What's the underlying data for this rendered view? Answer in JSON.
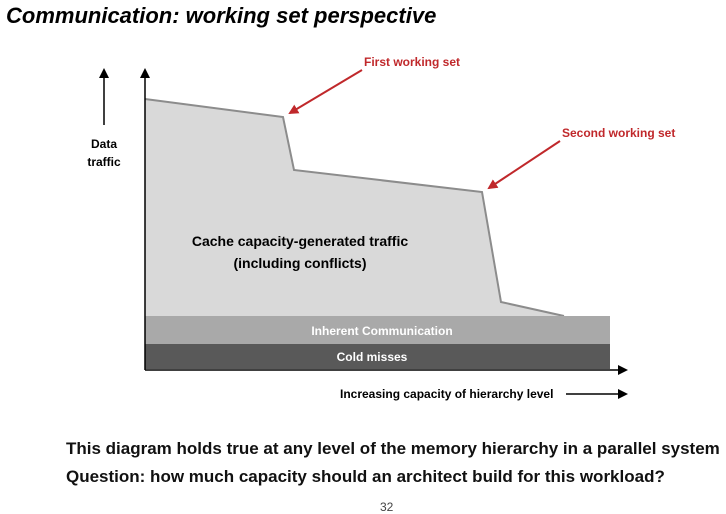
{
  "title": "Communication: working set perspective",
  "diagram": {
    "y_axis_label_line1": "Data",
    "y_axis_label_line2": "traffic",
    "x_axis_label": "Increasing capacity of hierarchy level",
    "first_working_set": "First working set",
    "second_working_set": "Second working set",
    "capacity_label_line1": "Cache capacity-generated traffic",
    "capacity_label_line2": "(including conflicts)",
    "inherent_label": "Inherent Communication",
    "cold_label": "Cold misses",
    "colors": {
      "capacity_region": "#d9d9d9",
      "inherent_band": "#a9a9a9",
      "cold_band": "#595959",
      "callout": "#c0282b"
    }
  },
  "body": {
    "line1": "This diagram holds true at any level of the memory hierarchy in a parallel system",
    "line2": "Question: how much capacity should an architect build for this workload?"
  },
  "page_number": "32"
}
